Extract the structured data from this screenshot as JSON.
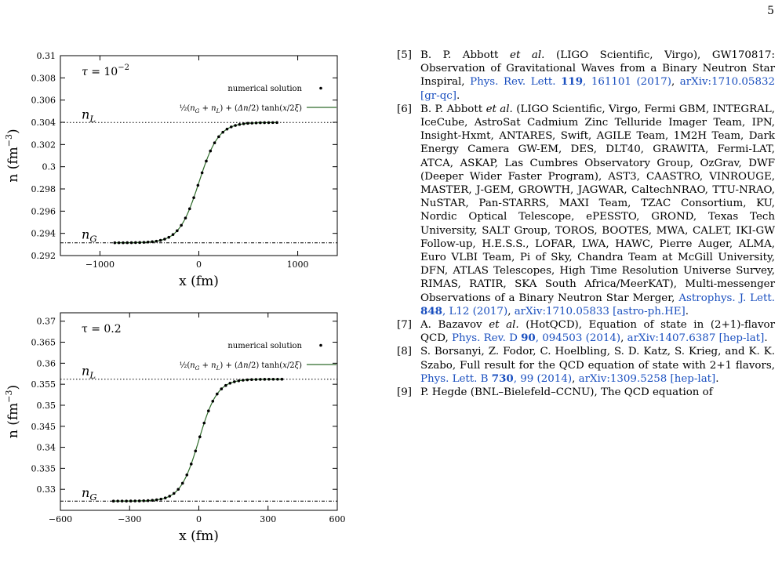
{
  "page_number": "5",
  "chart_data": [
    {
      "type": "scatter",
      "annotation": "τ = 10⁻²",
      "xlabel": "x (fm)",
      "ylabel": "n (fm⁻³)",
      "xlim": [
        -1400,
        1400
      ],
      "ylim": [
        0.292,
        0.31
      ],
      "xticks": [
        -1000,
        0,
        1000
      ],
      "yticks": [
        0.292,
        0.294,
        0.296,
        0.298,
        0.3,
        0.302,
        0.304,
        0.306,
        0.308,
        0.31
      ],
      "ytick_labels": [
        "0.292",
        "0.294",
        "0.296",
        "0.298",
        "0.3",
        "0.302",
        "0.304",
        "0.306",
        "0.308",
        "0.31"
      ],
      "n_G": 0.29315,
      "n_L": 0.30398,
      "xi": 100,
      "label_nG": "n_G",
      "label_nL": "n_L",
      "x_range": [
        -850,
        790
      ],
      "n_points": 40,
      "legend": [
        "numerical solution",
        "½(n_G + n_L) + (Δn/2) tanh(x/2ξ)"
      ],
      "legend_placement": "top-right",
      "grid": false
    },
    {
      "type": "scatter",
      "annotation": "τ = 0.2",
      "xlabel": "x (fm)",
      "ylabel": "n (fm⁻³)",
      "xlim": [
        -600,
        600
      ],
      "ylim": [
        0.325,
        0.372
      ],
      "xticks": [
        -600,
        -300,
        0,
        300,
        600
      ],
      "yticks": [
        0.325,
        0.33,
        0.335,
        0.34,
        0.345,
        0.35,
        0.355,
        0.36,
        0.365,
        0.37
      ],
      "ytick_labels": [
        "",
        "0.33",
        "0.335",
        "0.34",
        "0.345",
        "0.35",
        "0.355",
        "0.36",
        "0.365",
        "0.37"
      ],
      "n_G": 0.3272,
      "n_L": 0.3562,
      "xi": 40,
      "label_nG": "n_G",
      "label_nL": "n_L",
      "x_range": [
        -370,
        360
      ],
      "n_points": 40,
      "legend": [
        "numerical solution",
        "½(n_G + n_L) + (Δn/2) tanh(x/2ξ)"
      ],
      "legend_placement": "top-right",
      "grid": false
    }
  ],
  "references": [
    {
      "num": "[5]",
      "parts": [
        {
          "t": "B. P. Abbott "
        },
        {
          "t": "et al.",
          "s": "it"
        },
        {
          "t": " (LIGO Scientific, Virgo), GW170817: Observation of Gravitational Waves from a Binary Neutron Star Inspiral, "
        },
        {
          "t": "Phys. Rev. Lett. ",
          "s": "link"
        },
        {
          "t": "119",
          "s": "link-b"
        },
        {
          "t": ", 161101 (2017)",
          "s": "link"
        },
        {
          "t": ", "
        },
        {
          "t": "arXiv:1710.05832 [gr-qc]",
          "s": "link"
        },
        {
          "t": "."
        }
      ]
    },
    {
      "num": "[6]",
      "parts": [
        {
          "t": "B. P. Abbott "
        },
        {
          "t": "et al.",
          "s": "it"
        },
        {
          "t": " (LIGO Scientific, Virgo, Fermi GBM, INTEGRAL, IceCube, AstroSat Cadmium Zinc Telluride Imager Team, IPN, Insight-Hxmt, ANTARES, Swift, AGILE Team, 1M2H Team, Dark Energy Camera GW-EM, DES, DLT40, GRAWITA, Fermi-LAT, ATCA, ASKAP, Las Cumbres Observatory Group, OzGrav, DWF (Deeper Wider Faster Program), AST3, CAASTRO, VINROUGE, MASTER, J-GEM, GROWTH, JAGWAR, CaltechNRAO, TTU-NRAO, NuSTAR, Pan-STARRS, MAXI Team, TZAC Consortium, KU, Nordic Optical Telescope, ePESSTO, GROND, Texas Tech University, SALT Group, TOROS, BOOTES, MWA, CALET, IKI-GW Follow-up, H.E.S.S., LOFAR, LWA, HAWC, Pierre Auger, ALMA, Euro VLBI Team, Pi of Sky, Chandra Team at McGill University, DFN, ATLAS Telescopes, High Time Resolution Universe Survey, RIMAS, RATIR, SKA South Africa/MeerKAT), Multi-messenger Observations of a Binary Neutron Star Merger, "
        },
        {
          "t": "Astrophys. J. Lett. ",
          "s": "link"
        },
        {
          "t": "848",
          "s": "link-b"
        },
        {
          "t": ", L12 (2017)",
          "s": "link"
        },
        {
          "t": ", "
        },
        {
          "t": "arXiv:1710.05833 [astro-ph.HE]",
          "s": "link"
        },
        {
          "t": "."
        }
      ]
    },
    {
      "num": "[7]",
      "parts": [
        {
          "t": "A. Bazavov "
        },
        {
          "t": "et al.",
          "s": "it"
        },
        {
          "t": " (HotQCD), Equation of state in (2+1)-flavor QCD, "
        },
        {
          "t": "Phys. Rev. D ",
          "s": "link"
        },
        {
          "t": "90",
          "s": "link-b"
        },
        {
          "t": ", 094503 (2014)",
          "s": "link"
        },
        {
          "t": ", "
        },
        {
          "t": "arXiv:1407.6387 [hep-lat]",
          "s": "link"
        },
        {
          "t": "."
        }
      ]
    },
    {
      "num": "[8]",
      "parts": [
        {
          "t": "S. Borsanyi, Z. Fodor, C. Hoelbling, S. D. Katz, S. Krieg, and K. K. Szabo, Full result for the QCD equation of state with 2+1 flavors, "
        },
        {
          "t": "Phys. Lett. B ",
          "s": "link"
        },
        {
          "t": "730",
          "s": "link-b"
        },
        {
          "t": ", 99 (2014)",
          "s": "link"
        },
        {
          "t": ", "
        },
        {
          "t": "arXiv:1309.5258 [hep-lat]",
          "s": "link"
        },
        {
          "t": "."
        }
      ]
    },
    {
      "num": "[9]",
      "parts": [
        {
          "t": "P. Hegde (BNL–Bielefeld–CCNU), The QCD equation of"
        }
      ]
    }
  ]
}
